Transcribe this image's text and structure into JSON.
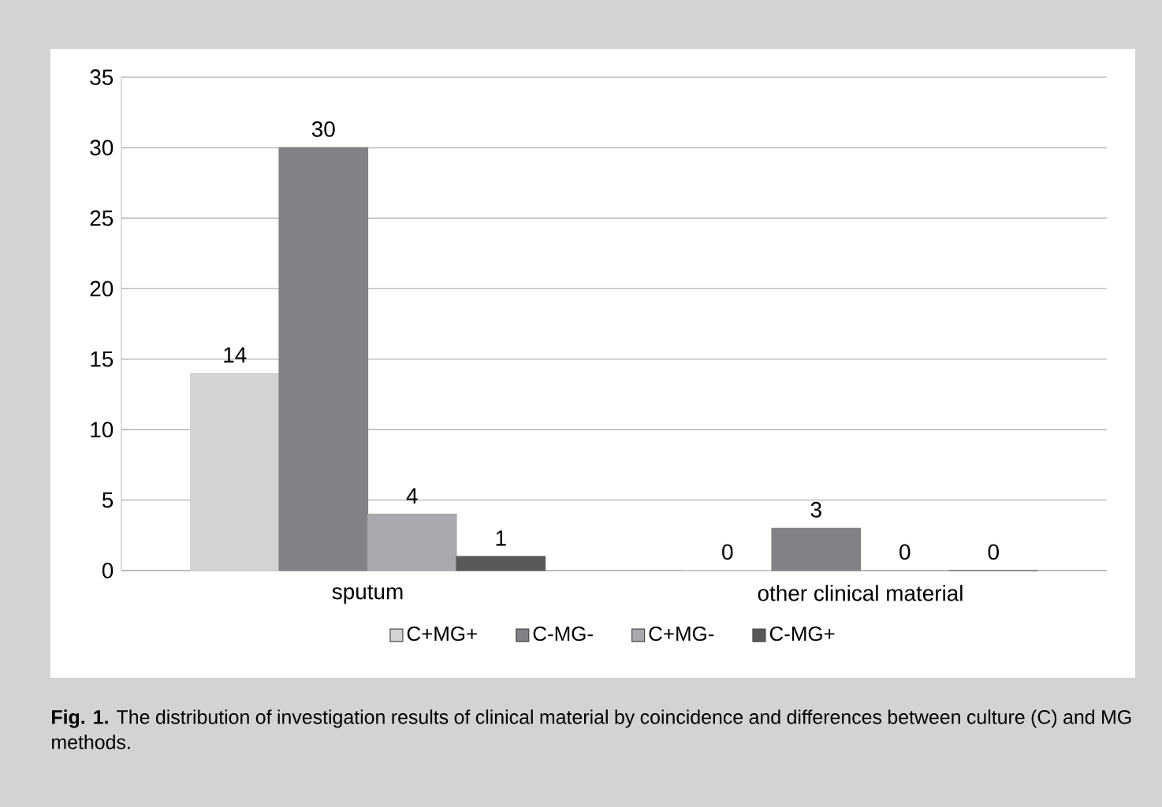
{
  "chart_data": {
    "type": "bar",
    "categories": [
      "sputum",
      "other clinical material"
    ],
    "series": [
      {
        "name": "C+MG+",
        "color": "#d1d3d4",
        "values": [
          14,
          0
        ]
      },
      {
        "name": "C-MG-",
        "color": "#808285",
        "values": [
          30,
          3
        ]
      },
      {
        "name": "C+MG-",
        "color": "#a7a9ac",
        "values": [
          4,
          0
        ]
      },
      {
        "name": "C-MG+",
        "color": "#58595b",
        "values": [
          1,
          0
        ]
      }
    ],
    "ylim": [
      0,
      35
    ],
    "yticks": [
      0,
      5,
      10,
      15,
      20,
      25,
      30,
      35
    ],
    "grid": "y",
    "legend": "bottom",
    "data_labels": true,
    "annotations": [
      "**Fig. 1.** The distribution of investigation results of clinical material by coincidence and differences between culture (C) and MG methods."
    ]
  }
}
